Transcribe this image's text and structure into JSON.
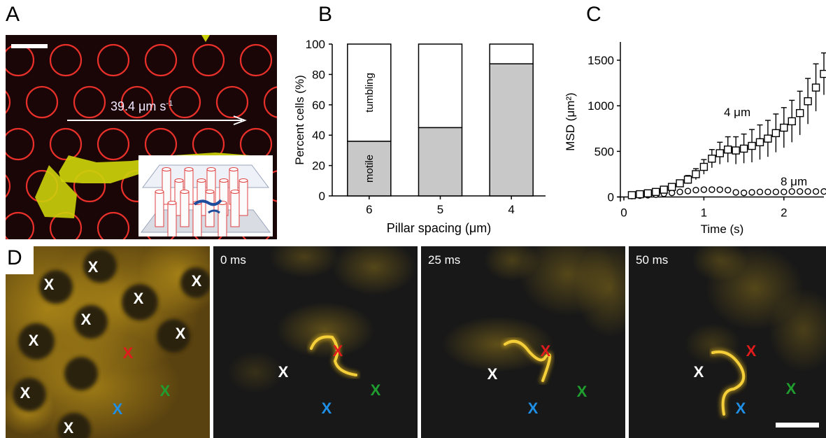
{
  "panels": {
    "A": {
      "label": "A",
      "speed_label": "39.4 μm s",
      "speed_sup": "-1",
      "colors": {
        "background": "#1a0606",
        "pillar": "#e8302a",
        "cell": "#ccd20a",
        "arrow": "#ffffff"
      }
    },
    "B": {
      "label": "B",
      "chart_data": {
        "type": "bar",
        "stacked": true,
        "categories": [
          "6",
          "5",
          "4"
        ],
        "series": [
          {
            "name": "motile",
            "values": [
              36,
              45,
              87
            ],
            "color": "#c8c8c8"
          },
          {
            "name": "tumbling",
            "values": [
              64,
              55,
              13
            ],
            "color": "#ffffff"
          }
        ],
        "xlabel": "Pillar spacing (μm)",
        "ylabel": "Percent cells (%)",
        "ylim": [
          0,
          100
        ],
        "yticks": [
          "0",
          "20",
          "40",
          "60",
          "80",
          "100"
        ],
        "grid": false
      }
    },
    "C": {
      "label": "C",
      "chart_data": {
        "type": "scatter",
        "xlabel": "Time (s)",
        "ylabel": "MSD",
        "ylabel_unit": "(μm²)",
        "xlim": [
          0,
          2.5
        ],
        "ylim": [
          -50,
          1700
        ],
        "xticks": [
          "0",
          "1",
          "2"
        ],
        "yticks": [
          "0",
          "500",
          "1000",
          "1500"
        ],
        "series": [
          {
            "name": "4 μm",
            "marker": "square",
            "x": [
              0.1,
              0.2,
              0.3,
              0.4,
              0.5,
              0.6,
              0.7,
              0.8,
              0.9,
              1.0,
              1.1,
              1.2,
              1.3,
              1.4,
              1.5,
              1.6,
              1.7,
              1.8,
              1.9,
              2.0,
              2.1,
              2.2,
              2.3,
              2.4,
              2.5
            ],
            "y": [
              20,
              30,
              40,
              55,
              80,
              110,
              150,
              190,
              250,
              330,
              420,
              480,
              520,
              510,
              530,
              560,
              600,
              640,
              700,
              760,
              830,
              920,
              1050,
              1200,
              1350
            ],
            "err": [
              10,
              12,
              14,
              18,
              22,
              28,
              35,
              45,
              60,
              80,
              100,
              120,
              140,
              150,
              160,
              180,
              190,
              200,
              210,
              220,
              230,
              240,
              250,
              260,
              230
            ]
          },
          {
            "name": "8 μm",
            "marker": "circle",
            "x": [
              0.1,
              0.2,
              0.3,
              0.4,
              0.5,
              0.6,
              0.7,
              0.8,
              0.9,
              1.0,
              1.1,
              1.2,
              1.3,
              1.4,
              1.5,
              1.6,
              1.7,
              1.8,
              1.9,
              2.0,
              2.1,
              2.2,
              2.3,
              2.4,
              2.5
            ],
            "y": [
              10,
              15,
              20,
              25,
              35,
              45,
              55,
              65,
              75,
              80,
              80,
              80,
              75,
              50,
              45,
              50,
              55,
              55,
              55,
              55,
              60,
              60,
              60,
              60,
              60
            ],
            "err": [
              3,
              4,
              5,
              6,
              8,
              10,
              12,
              14,
              16,
              18,
              20,
              20,
              18,
              10,
              8,
              8,
              8,
              8,
              8,
              8,
              8,
              8,
              8,
              8,
              8
            ]
          }
        ]
      }
    },
    "D": {
      "label": "D",
      "frames": [
        {
          "timestamp": ""
        },
        {
          "timestamp": "0 ms"
        },
        {
          "timestamp": "25 ms"
        },
        {
          "timestamp": "50 ms"
        }
      ],
      "marker_text": "X",
      "marker_colors": {
        "white": "#ffffff",
        "red": "#e11b1b",
        "green": "#1f9e2f",
        "blue": "#1f8fe6"
      },
      "glow_color": "#e3b51c"
    }
  }
}
